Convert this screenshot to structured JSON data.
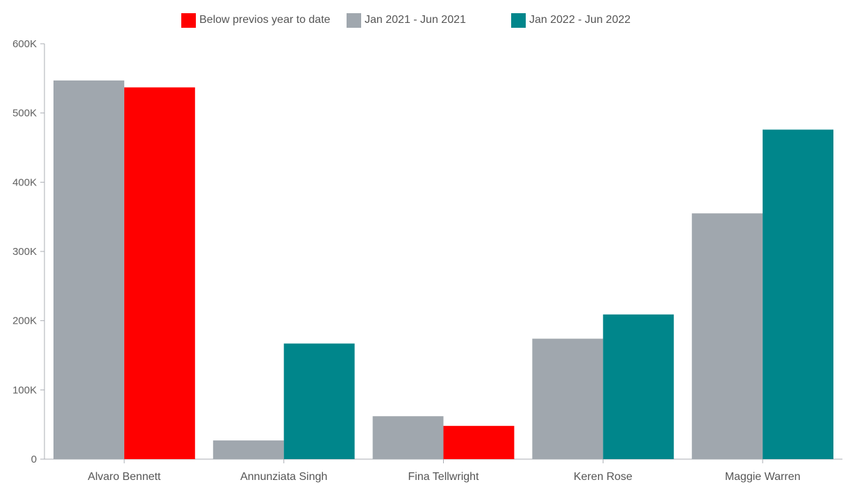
{
  "chart_data": {
    "type": "bar",
    "title": "",
    "xlabel": "",
    "ylabel": "",
    "ylim": [
      0,
      600000
    ],
    "y_ticks": [
      0,
      100000,
      200000,
      300000,
      400000,
      500000,
      600000
    ],
    "y_tick_labels": [
      "0",
      "100K",
      "200K",
      "300K",
      "400K",
      "500K",
      "600K"
    ],
    "grid": false,
    "legend_position": "top-center",
    "categories": [
      "Alvaro Bennett",
      "Annunziata Singh",
      "Fina Tellwright",
      "Keren Rose",
      "Maggie Warren"
    ],
    "series": [
      {
        "name": "Jan 2021 - Jun 2021",
        "color": "#a0a7ae",
        "values": [
          547000,
          27000,
          62000,
          174000,
          355000
        ]
      },
      {
        "name": "Jan 2022 - Jun 2022",
        "color": "#00868b",
        "values": [
          537000,
          167000,
          48000,
          209000,
          476000
        ],
        "highlight_below_previous_color": "#ff0000"
      }
    ],
    "legend": [
      {
        "label": "Below previos year to date",
        "color": "#ff0000"
      },
      {
        "label": "Jan 2021 - Jun 2021",
        "color": "#a0a7ae"
      },
      {
        "label": "Jan 2022 - Jun 2022",
        "color": "#00868b"
      }
    ]
  }
}
